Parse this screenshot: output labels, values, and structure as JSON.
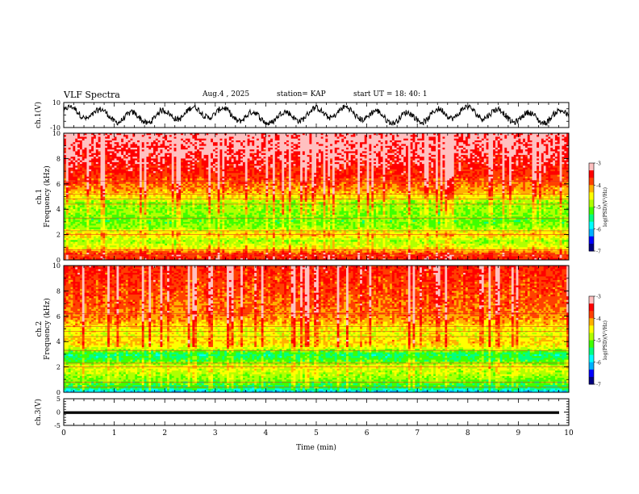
{
  "header": {
    "title": "VLF Spectra",
    "date": "Aug.4 , 2025",
    "station": "station= KAP",
    "start": "start UT = 18: 40: 1"
  },
  "colors": {
    "spectrogram": [
      "#000080",
      "#0000ff",
      "#00b0ff",
      "#00ffff",
      "#00ff80",
      "#40ff00",
      "#b0ff00",
      "#ffff00",
      "#ffb000",
      "#ff4000",
      "#ff0000",
      "#ffc0c0"
    ],
    "waveform": "#000000",
    "background": "#ffffff"
  },
  "chart_data": [
    {
      "type": "line",
      "name": "ch1-waveform",
      "ylabel": "ch.1(V)",
      "xlim": [
        0,
        9.83
      ],
      "ylim": [
        -10,
        10
      ],
      "yticks": [
        "10",
        "-10"
      ],
      "description_values": "noisy waveform oscillating roughly between -8 V and +8 V",
      "y_range_estimate": [
        -8,
        8
      ]
    },
    {
      "type": "heatmap",
      "name": "ch1-spectrogram",
      "ylabel": "ch.1\nFrequency (kHz)",
      "ylabel_lines": [
        "ch.1",
        "Frequency (kHz)"
      ],
      "ylim": [
        0,
        10
      ],
      "yticks": [
        "0",
        "2",
        "4",
        "6",
        "8",
        "10"
      ],
      "colorbar": {
        "label": "log(PSD)(V²/Hz)",
        "ticks": [
          "-3",
          "-4",
          "-5",
          "-6",
          "-7"
        ],
        "range": [
          -7,
          -3
        ]
      },
      "level_profile": [
        {
          "f": 0.0,
          "v": -3.6
        },
        {
          "f": 0.5,
          "v": -3.8
        },
        {
          "f": 1.0,
          "v": -4.6
        },
        {
          "f": 1.5,
          "v": -4.9
        },
        {
          "f": 2.0,
          "v": -4.3
        },
        {
          "f": 2.5,
          "v": -4.9
        },
        {
          "f": 3.0,
          "v": -5.1
        },
        {
          "f": 3.5,
          "v": -5.0
        },
        {
          "f": 4.0,
          "v": -4.9
        },
        {
          "f": 4.5,
          "v": -4.9
        },
        {
          "f": 5.0,
          "v": -4.4
        },
        {
          "f": 5.5,
          "v": -4.1
        },
        {
          "f": 6.0,
          "v": -3.9
        },
        {
          "f": 7.0,
          "v": -3.6
        },
        {
          "f": 8.0,
          "v": -3.4
        },
        {
          "f": 9.0,
          "v": -3.3
        },
        {
          "f": 10.0,
          "v": -3.2
        }
      ]
    },
    {
      "type": "heatmap",
      "name": "ch2-spectrogram",
      "ylabel": "ch.2\nFrequency (kHz)",
      "ylabel_lines": [
        "ch.2",
        "Frequency (kHz)"
      ],
      "ylim": [
        0,
        10
      ],
      "yticks": [
        "0",
        "2",
        "4",
        "6",
        "8",
        "10"
      ],
      "colorbar": {
        "label": "log(PSD)(V²/Hz)",
        "ticks": [
          "-3",
          "-4",
          "-5",
          "-6",
          "-7"
        ],
        "range": [
          -7,
          -3
        ]
      },
      "level_profile": [
        {
          "f": 0.0,
          "v": -6.2
        },
        {
          "f": 0.3,
          "v": -5.4
        },
        {
          "f": 1.0,
          "v": -5.0
        },
        {
          "f": 1.5,
          "v": -4.8
        },
        {
          "f": 2.0,
          "v": -4.6
        },
        {
          "f": 2.5,
          "v": -5.2
        },
        {
          "f": 3.0,
          "v": -5.5
        },
        {
          "f": 3.5,
          "v": -4.6
        },
        {
          "f": 4.0,
          "v": -4.3
        },
        {
          "f": 4.5,
          "v": -4.6
        },
        {
          "f": 5.0,
          "v": -4.5
        },
        {
          "f": 5.5,
          "v": -4.2
        },
        {
          "f": 6.0,
          "v": -4.0
        },
        {
          "f": 7.0,
          "v": -3.9
        },
        {
          "f": 8.0,
          "v": -3.8
        },
        {
          "f": 9.0,
          "v": -3.7
        },
        {
          "f": 10.0,
          "v": -3.6
        }
      ]
    },
    {
      "type": "line",
      "name": "ch3-waveform",
      "ylabel": "ch.3(V)",
      "xlabel": "Time (min)",
      "xlim": [
        0,
        10
      ],
      "xticks": [
        "0",
        "1",
        "2",
        "3",
        "4",
        "5",
        "6",
        "7",
        "8",
        "9",
        "10"
      ],
      "ylim": [
        -5,
        5
      ],
      "yticks": [
        "5",
        "0",
        "-5"
      ],
      "level": -0.2,
      "thickness_estimate": 0.5
    }
  ]
}
